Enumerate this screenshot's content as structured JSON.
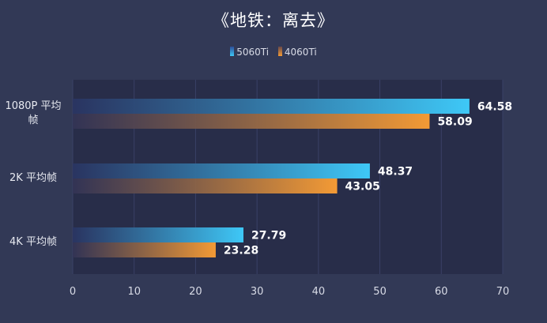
{
  "chart_data": {
    "type": "bar",
    "orientation": "horizontal",
    "title": "《地铁：离去》",
    "categories": [
      "1080P 平均帧",
      "2K 平均帧",
      "4K 平均帧"
    ],
    "series": [
      {
        "name": "5060Ti",
        "values": [
          64.58,
          48.37,
          27.79
        ],
        "color": "#3ec8f7"
      },
      {
        "name": "4060Ti",
        "values": [
          58.09,
          43.05,
          23.28
        ],
        "color": "#f39a35"
      }
    ],
    "xlim": [
      0,
      70
    ],
    "xticks": [
      0,
      10,
      20,
      30,
      40,
      50,
      60,
      70
    ],
    "legend_position": "top-center",
    "grid": true
  },
  "legend": {
    "items": [
      {
        "label": "5060Ti"
      },
      {
        "label": "4060Ti"
      }
    ]
  }
}
